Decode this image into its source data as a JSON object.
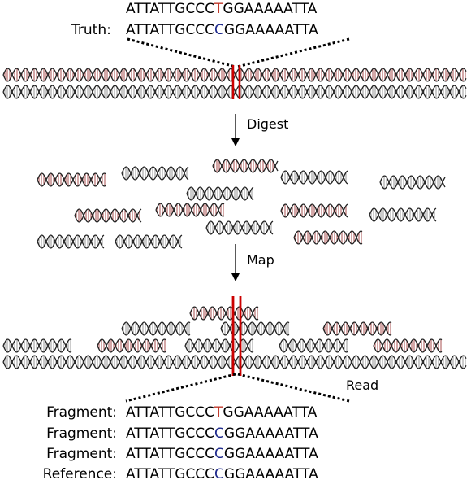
{
  "colors": {
    "variant_alt": "#c0392b",
    "variant_ref": "#1f2a8c",
    "strand_red": "#a85050",
    "strand_gray": "#9a9a9a",
    "marker": "#cc0000"
  },
  "top": {
    "variant_sequence": {
      "prefix": "ATTATTGCCC",
      "base": "T",
      "suffix": "GGAAAAATTA"
    },
    "truth_label": "Truth:",
    "truth_sequence": {
      "prefix": "ATTATTGCCC",
      "base": "C",
      "suffix": "GGAAAAATTA"
    }
  },
  "steps": {
    "digest": "Digest",
    "map": "Map",
    "read": "Read"
  },
  "bottom": {
    "rows": [
      {
        "label": "Fragment:",
        "prefix": "ATTATTGCCC",
        "base": "T",
        "base_kind": "alt",
        "suffix": "GGAAAAATTA"
      },
      {
        "label": "Fragment:",
        "prefix": "ATTATTGCCC",
        "base": "C",
        "base_kind": "ref",
        "suffix": "GGAAAAATTA"
      },
      {
        "label": "Fragment:",
        "prefix": "ATTATTGCCC",
        "base": "C",
        "base_kind": "ref",
        "suffix": "GGAAAAATTA"
      },
      {
        "label": "Reference:",
        "prefix": "ATTATTGCCC",
        "base": "C",
        "base_kind": "ref",
        "suffix": "GGAAAAATTA"
      }
    ]
  }
}
